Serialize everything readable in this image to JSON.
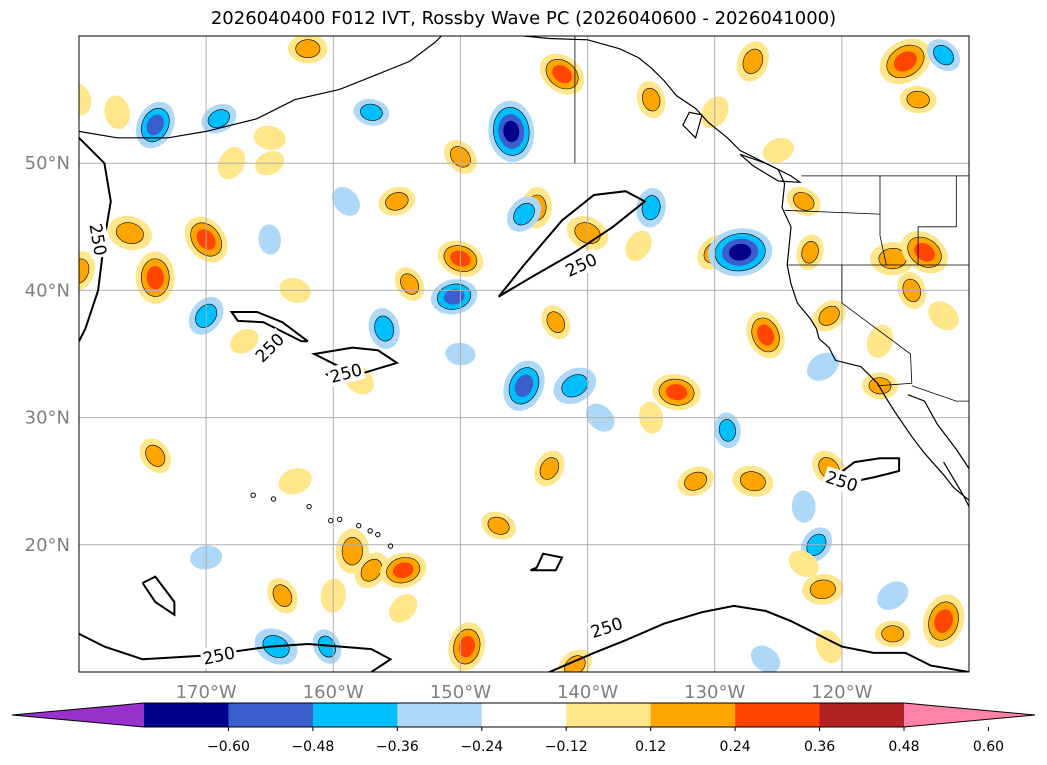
{
  "title": "2026040400 F012 IVT, Rossby Wave PC (2026040600 - 2026041000)",
  "map": {
    "lon_range": [
      -180,
      -110
    ],
    "lat_range": [
      10,
      60
    ],
    "lon_ticks": [
      {
        "lon": -170,
        "label": "170°W"
      },
      {
        "lon": -160,
        "label": "160°W"
      },
      {
        "lon": -150,
        "label": "150°W"
      },
      {
        "lon": -140,
        "label": "140°W"
      },
      {
        "lon": -130,
        "label": "130°W"
      },
      {
        "lon": -120,
        "label": "120°W"
      }
    ],
    "lat_ticks": [
      {
        "lat": 20,
        "label": "20°N"
      },
      {
        "lat": 30,
        "label": "30°N"
      },
      {
        "lat": 40,
        "label": "40°N"
      },
      {
        "lat": 50,
        "label": "50°N"
      }
    ],
    "gridlines": true,
    "contour_level_label": "250"
  },
  "colorbar": {
    "extend": "both",
    "colors": [
      "#9932cc",
      "#00008b",
      "#3a5fcd",
      "#00bfff",
      "#add8f8",
      "#ffffff",
      "#ffe68a",
      "#ffa500",
      "#ff4500",
      "#b22222",
      "#ff82a8"
    ],
    "ticks": [
      "−0.60",
      "−0.48",
      "−0.36",
      "−0.24",
      "−0.12",
      "0.12",
      "0.24",
      "0.36",
      "0.48",
      "0.60"
    ]
  },
  "blobs": [
    {
      "lon": -162,
      "lat": 59,
      "v": 0.28
    },
    {
      "lon": -142,
      "lat": 57,
      "v": 0.38
    },
    {
      "lon": -135,
      "lat": 55,
      "v": 0.26
    },
    {
      "lon": -127,
      "lat": 58,
      "v": 0.3
    },
    {
      "lon": -115,
      "lat": 58,
      "v": 0.45
    },
    {
      "lon": -114,
      "lat": 55,
      "v": 0.25
    },
    {
      "lon": -112,
      "lat": 58.5,
      "v": -0.25
    },
    {
      "lon": -177,
      "lat": 54,
      "v": 0.22
    },
    {
      "lon": -174,
      "lat": 53,
      "v": -0.38
    },
    {
      "lon": -169,
      "lat": 53.5,
      "v": -0.25
    },
    {
      "lon": -157,
      "lat": 54,
      "v": -0.24
    },
    {
      "lon": -150,
      "lat": 50.5,
      "v": 0.26
    },
    {
      "lon": -146,
      "lat": 52.5,
      "v": -0.52
    },
    {
      "lon": -130,
      "lat": 54,
      "v": 0.22
    },
    {
      "lon": -125,
      "lat": 51,
      "v": 0.2
    },
    {
      "lon": -176,
      "lat": 44.5,
      "v": 0.34
    },
    {
      "lon": -170,
      "lat": 44,
      "v": 0.4
    },
    {
      "lon": -174,
      "lat": 41,
      "v": 0.42
    },
    {
      "lon": -170,
      "lat": 38,
      "v": -0.3
    },
    {
      "lon": -155,
      "lat": 47,
      "v": 0.26
    },
    {
      "lon": -150,
      "lat": 42.5,
      "v": 0.36
    },
    {
      "lon": -154,
      "lat": 40.5,
      "v": 0.24
    },
    {
      "lon": -144,
      "lat": 46.5,
      "v": 0.3
    },
    {
      "lon": -145,
      "lat": 46,
      "v": -0.28
    },
    {
      "lon": -150.5,
      "lat": 39.5,
      "v": -0.36
    },
    {
      "lon": -140,
      "lat": 44.5,
      "v": 0.32
    },
    {
      "lon": -142.5,
      "lat": 37.5,
      "v": 0.24
    },
    {
      "lon": -135,
      "lat": 46.5,
      "v": -0.28
    },
    {
      "lon": -130,
      "lat": 43,
      "v": 0.28
    },
    {
      "lon": -128,
      "lat": 43,
      "v": -0.55
    },
    {
      "lon": -123,
      "lat": 47,
      "v": 0.24
    },
    {
      "lon": -126,
      "lat": 36.5,
      "v": 0.38
    },
    {
      "lon": -122.5,
      "lat": 43,
      "v": 0.24
    },
    {
      "lon": -121,
      "lat": 38,
      "v": 0.25
    },
    {
      "lon": -116,
      "lat": 42.5,
      "v": 0.34
    },
    {
      "lon": -113.5,
      "lat": 43,
      "v": 0.4
    },
    {
      "lon": -114.5,
      "lat": 40,
      "v": 0.26
    },
    {
      "lon": -117,
      "lat": 36,
      "v": 0.22
    },
    {
      "lon": -121.5,
      "lat": 34,
      "v": -0.22
    },
    {
      "lon": -117,
      "lat": 32.5,
      "v": 0.24
    },
    {
      "lon": -112,
      "lat": 38,
      "v": 0.22
    },
    {
      "lon": -156,
      "lat": 37,
      "v": -0.3
    },
    {
      "lon": -145,
      "lat": 32.5,
      "v": -0.42
    },
    {
      "lon": -141,
      "lat": 32.5,
      "v": -0.34
    },
    {
      "lon": -133,
      "lat": 32,
      "v": 0.38
    },
    {
      "lon": -158,
      "lat": 33,
      "v": 0.22
    },
    {
      "lon": -129,
      "lat": 29,
      "v": -0.24
    },
    {
      "lon": -143,
      "lat": 26,
      "v": 0.26
    },
    {
      "lon": -131.5,
      "lat": 25,
      "v": 0.26
    },
    {
      "lon": -127,
      "lat": 25,
      "v": 0.3
    },
    {
      "lon": -121,
      "lat": 26,
      "v": 0.28
    },
    {
      "lon": -123,
      "lat": 23,
      "v": -0.2
    },
    {
      "lon": -122,
      "lat": 20,
      "v": -0.26
    },
    {
      "lon": -163,
      "lat": 25,
      "v": 0.22
    },
    {
      "lon": -163,
      "lat": 40,
      "v": 0.2
    },
    {
      "lon": -174,
      "lat": 27,
      "v": 0.26
    },
    {
      "lon": -158.5,
      "lat": 19.5,
      "v": 0.34
    },
    {
      "lon": -157,
      "lat": 18,
      "v": 0.28
    },
    {
      "lon": -154.5,
      "lat": 18,
      "v": 0.36
    },
    {
      "lon": -147,
      "lat": 21.5,
      "v": 0.24
    },
    {
      "lon": -164,
      "lat": 16,
      "v": 0.26
    },
    {
      "lon": -160,
      "lat": 16,
      "v": 0.22
    },
    {
      "lon": -154.5,
      "lat": 15,
      "v": 0.2
    },
    {
      "lon": -170,
      "lat": 19,
      "v": -0.2
    },
    {
      "lon": -164.5,
      "lat": 12,
      "v": -0.34
    },
    {
      "lon": -160.5,
      "lat": 12,
      "v": -0.24
    },
    {
      "lon": -149.5,
      "lat": 12,
      "v": 0.38
    },
    {
      "lon": -141,
      "lat": 10.5,
      "v": 0.26
    },
    {
      "lon": -121.5,
      "lat": 16.5,
      "v": 0.3
    },
    {
      "lon": -123,
      "lat": 18.5,
      "v": 0.2
    },
    {
      "lon": -121,
      "lat": 12,
      "v": 0.22
    },
    {
      "lon": -112,
      "lat": 14,
      "v": 0.44
    },
    {
      "lon": -116,
      "lat": 16,
      "v": -0.22
    },
    {
      "lon": -116,
      "lat": 13,
      "v": 0.24
    },
    {
      "lon": -126,
      "lat": 11,
      "v": -0.2
    },
    {
      "lon": -180,
      "lat": 55,
      "v": 0.2
    },
    {
      "lon": -180,
      "lat": 41.5,
      "v": 0.3
    },
    {
      "lon": -167,
      "lat": 36,
      "v": 0.18
    },
    {
      "lon": -150,
      "lat": 35,
      "v": -0.18
    },
    {
      "lon": -139,
      "lat": 30,
      "v": -0.2
    },
    {
      "lon": -135,
      "lat": 30,
      "v": 0.2
    },
    {
      "lon": -168,
      "lat": 50,
      "v": 0.22
    },
    {
      "lon": -165,
      "lat": 50,
      "v": 0.18
    },
    {
      "lon": -165,
      "lat": 52,
      "v": 0.2
    },
    {
      "lon": -159,
      "lat": 47,
      "v": -0.2
    },
    {
      "lon": -165,
      "lat": 44,
      "v": -0.18
    },
    {
      "lon": -136,
      "lat": 43.5,
      "v": 0.2
    }
  ],
  "contours": [
    [
      [
        -180,
        52
      ],
      [
        -178,
        50
      ],
      [
        -177.5,
        47
      ],
      [
        -178,
        44
      ],
      [
        -178.5,
        40
      ],
      [
        -179.5,
        37
      ],
      [
        -180,
        36
      ]
    ],
    [
      [
        -147,
        39.5
      ],
      [
        -145,
        42
      ],
      [
        -142,
        45.5
      ],
      [
        -139.5,
        47.5
      ],
      [
        -137,
        47.8
      ],
      [
        -135.5,
        47
      ],
      [
        -138,
        45
      ],
      [
        -141,
        43
      ],
      [
        -144.5,
        41
      ],
      [
        -146.5,
        39.8
      ],
      [
        -147,
        39.5
      ]
    ],
    [
      [
        -162,
        36
      ],
      [
        -164,
        37.5
      ],
      [
        -166,
        38.3
      ],
      [
        -168,
        38.3
      ],
      [
        -167.5,
        37.6
      ],
      [
        -165.5,
        37.5
      ],
      [
        -162.5,
        36
      ],
      [
        -162,
        36
      ]
    ],
    [
      [
        -158.5,
        35.5
      ],
      [
        -156.5,
        35.3
      ],
      [
        -155,
        34.3
      ],
      [
        -158,
        33.4
      ],
      [
        -160,
        33.1
      ],
      [
        -160.5,
        33.4
      ],
      [
        -159.5,
        34
      ],
      [
        -161.5,
        35
      ],
      [
        -158.5,
        35.5
      ]
    ],
    [
      [
        -121,
        25
      ],
      [
        -119,
        26.5
      ],
      [
        -117,
        26.8
      ],
      [
        -115.5,
        26.8
      ],
      [
        -115.5,
        25.8
      ],
      [
        -117.5,
        25.3
      ],
      [
        -119,
        25
      ],
      [
        -121,
        25
      ]
    ],
    [
      [
        -175,
        17
      ],
      [
        -174,
        17.5
      ],
      [
        -172.5,
        15.5
      ],
      [
        -172.5,
        14.5
      ],
      [
        -174,
        15.5
      ],
      [
        -175,
        17
      ]
    ],
    [
      [
        -144.5,
        18
      ],
      [
        -142.5,
        18
      ],
      [
        -142,
        19
      ],
      [
        -143.5,
        19.3
      ],
      [
        -144,
        18.2
      ],
      [
        -144.5,
        18
      ]
    ],
    [
      [
        -180,
        13
      ],
      [
        -178,
        12
      ],
      [
        -175,
        11
      ],
      [
        -170,
        11.3
      ],
      [
        -165,
        12
      ],
      [
        -162,
        12.2
      ],
      [
        -157,
        11.8
      ],
      [
        -155.5,
        11
      ],
      [
        -157,
        10
      ]
    ],
    [
      [
        -143,
        10
      ],
      [
        -139.5,
        11.5
      ],
      [
        -137,
        12.5
      ],
      [
        -134,
        13.8
      ],
      [
        -131,
        14.7
      ],
      [
        -128.5,
        15.2
      ],
      [
        -126,
        14.8
      ],
      [
        -124,
        14
      ],
      [
        -122,
        13
      ],
      [
        -120,
        12
      ],
      [
        -117.5,
        11.5
      ],
      [
        -115,
        11.5
      ],
      [
        -113,
        10.5
      ],
      [
        -110,
        10
      ]
    ]
  ],
  "contour_labels": [
    {
      "lon": -178.5,
      "lat": 44,
      "rot": 80
    },
    {
      "lon": -140.5,
      "lat": 42,
      "rot": -25
    },
    {
      "lon": -165,
      "lat": 35.5,
      "rot": -45
    },
    {
      "lon": -159,
      "lat": 33.5,
      "rot": -15
    },
    {
      "lon": -120,
      "lat": 25,
      "rot": 18
    },
    {
      "lon": -169,
      "lat": 11.3,
      "rot": -12
    },
    {
      "lon": -138.5,
      "lat": 13.5,
      "rot": -18
    }
  ],
  "coast": [
    [
      [
        -180,
        52.5
      ],
      [
        -177,
        52
      ],
      [
        -173,
        52
      ],
      [
        -170,
        52.5
      ],
      [
        -166,
        53.5
      ],
      [
        -163,
        55
      ],
      [
        -159.5,
        55.8
      ],
      [
        -156.5,
        57
      ],
      [
        -154,
        58
      ],
      [
        -152,
        59.5
      ],
      [
        -151.5,
        60
      ]
    ],
    [
      [
        -145,
        60
      ],
      [
        -143,
        59.8
      ],
      [
        -140,
        59.7
      ],
      [
        -137.5,
        59
      ],
      [
        -136,
        58.3
      ],
      [
        -135,
        57.5
      ],
      [
        -134,
        56.5
      ],
      [
        -133,
        55.3
      ],
      [
        -131.5,
        54.3
      ],
      [
        -130.5,
        53.2
      ],
      [
        -129,
        52
      ],
      [
        -128,
        51
      ],
      [
        -127,
        50.5
      ],
      [
        -125,
        49.5
      ],
      [
        -124.5,
        48.4
      ],
      [
        -124.7,
        46.5
      ],
      [
        -124,
        45
      ],
      [
        -124.2,
        43
      ],
      [
        -124.3,
        42
      ],
      [
        -124,
        40.5
      ],
      [
        -123.5,
        39
      ],
      [
        -122.5,
        37.8
      ],
      [
        -122,
        37
      ],
      [
        -121.8,
        36.2
      ],
      [
        -121,
        35.5
      ],
      [
        -120.5,
        34.5
      ],
      [
        -118.5,
        34
      ],
      [
        -117.2,
        32.7
      ],
      [
        -116.5,
        31.5
      ],
      [
        -115.8,
        30.4
      ],
      [
        -114.5,
        28.5
      ],
      [
        -113.5,
        27.2
      ],
      [
        -112,
        25.5
      ],
      [
        -111.2,
        24.5
      ],
      [
        -110,
        23.5
      ]
    ],
    [
      [
        -114.8,
        31.8
      ],
      [
        -113.5,
        31.3
      ],
      [
        -112.5,
        29.5
      ],
      [
        -111,
        27.5
      ],
      [
        -110,
        26
      ]
    ],
    [
      [
        -110,
        23
      ],
      [
        -110.5,
        24
      ],
      [
        -112,
        26.5
      ]
    ],
    [
      [
        -131,
        53.8
      ],
      [
        -132,
        54
      ],
      [
        -132.5,
        53
      ],
      [
        -131.5,
        52
      ],
      [
        -131,
        53.8
      ]
    ],
    [
      [
        -128,
        50.7
      ],
      [
        -126,
        50
      ],
      [
        -124,
        49
      ],
      [
        -123.3,
        48.5
      ],
      [
        -125,
        48.6
      ],
      [
        -127,
        49.8
      ],
      [
        -128,
        50.7
      ]
    ]
  ],
  "islands": [
    [
      -155.5,
      19.9
    ],
    [
      -156.5,
      20.8
    ],
    [
      -157.1,
      21.1
    ],
    [
      -158,
      21.5
    ],
    [
      -159.5,
      22
    ],
    [
      -160.2,
      21.9
    ],
    [
      -161.9,
      23
    ],
    [
      -164.7,
      23.6
    ],
    [
      -166.3,
      23.9
    ]
  ],
  "borders": [
    [
      [
        -141,
        60
      ],
      [
        -141,
        50
      ]
    ],
    [
      [
        -123.2,
        49
      ],
      [
        -110,
        49
      ]
    ],
    [
      [
        -124.3,
        42
      ],
      [
        -110,
        42
      ]
    ],
    [
      [
        -120,
        42
      ],
      [
        -120,
        39
      ],
      [
        -114.6,
        35
      ]
    ],
    [
      [
        -117,
        49
      ],
      [
        -117,
        44.3
      ],
      [
        -116.5,
        42
      ]
    ],
    [
      [
        -124.5,
        46.3
      ],
      [
        -117,
        46
      ]
    ],
    [
      [
        -114.6,
        35
      ],
      [
        -114.5,
        32.7
      ],
      [
        -117.2,
        32.5
      ]
    ],
    [
      [
        -114.5,
        32.5
      ],
      [
        -111,
        31.3
      ],
      [
        -110,
        31.3
      ]
    ],
    [
      [
        -111,
        49
      ],
      [
        -111,
        45
      ],
      [
        -114,
        45
      ],
      [
        -114,
        42
      ]
    ]
  ]
}
